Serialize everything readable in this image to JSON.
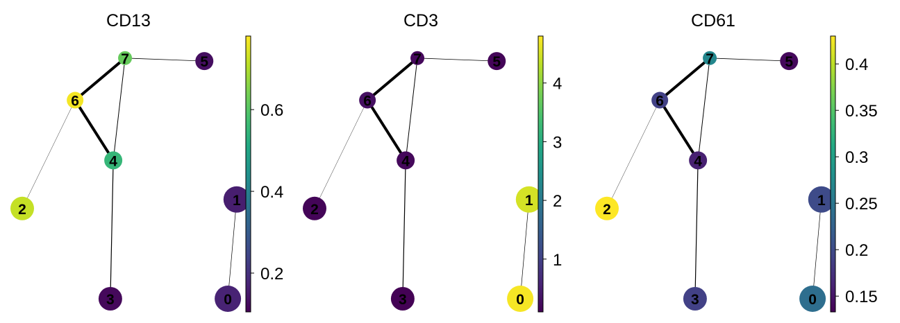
{
  "chart_data": [
    {
      "type": "scatter",
      "title": "CD13",
      "colorbar": {
        "min": 0.105,
        "max": 0.78,
        "ticks": [
          "0.2",
          "0.4",
          "0.6"
        ],
        "tick_values": [
          0.2,
          0.4,
          0.6
        ]
      },
      "nodes": [
        {
          "id": "0",
          "x": 7.0,
          "y": 0.4,
          "size": 19,
          "value": 0.17
        },
        {
          "id": "1",
          "x": 7.3,
          "y": 3.7,
          "size": 19,
          "value": 0.16
        },
        {
          "id": "2",
          "x": 0.0,
          "y": 3.4,
          "size": 17,
          "value": 0.72
        },
        {
          "id": "3",
          "x": 3.0,
          "y": 0.4,
          "size": 17,
          "value": 0.12
        },
        {
          "id": "4",
          "x": 3.1,
          "y": 5.0,
          "size": 13,
          "value": 0.55
        },
        {
          "id": "5",
          "x": 6.2,
          "y": 8.3,
          "size": 13,
          "value": 0.13
        },
        {
          "id": "6",
          "x": 1.8,
          "y": 7.0,
          "size": 12,
          "value": 0.77
        },
        {
          "id": "7",
          "x": 3.5,
          "y": 8.4,
          "size": 10,
          "value": 0.62
        }
      ]
    },
    {
      "type": "scatter",
      "title": "CD3",
      "colorbar": {
        "min": 0.1,
        "max": 4.8,
        "ticks": [
          "1",
          "2",
          "3",
          "4"
        ],
        "tick_values": [
          1,
          2,
          3,
          4
        ]
      },
      "nodes": [
        {
          "id": "0",
          "x": 7.0,
          "y": 0.4,
          "size": 19,
          "value": 4.75
        },
        {
          "id": "1",
          "x": 7.3,
          "y": 3.7,
          "size": 19,
          "value": 4.5
        },
        {
          "id": "2",
          "x": 0.0,
          "y": 3.4,
          "size": 17,
          "value": 0.15
        },
        {
          "id": "3",
          "x": 3.0,
          "y": 0.4,
          "size": 17,
          "value": 0.12
        },
        {
          "id": "4",
          "x": 3.1,
          "y": 5.0,
          "size": 13,
          "value": 0.2
        },
        {
          "id": "5",
          "x": 6.2,
          "y": 8.3,
          "size": 13,
          "value": 0.15
        },
        {
          "id": "6",
          "x": 1.8,
          "y": 7.0,
          "size": 12,
          "value": 0.3
        },
        {
          "id": "7",
          "x": 3.5,
          "y": 8.4,
          "size": 10,
          "value": 0.2
        }
      ]
    },
    {
      "type": "scatter",
      "title": "CD61",
      "colorbar": {
        "min": 0.133,
        "max": 0.43,
        "ticks": [
          "0.15",
          "0.2",
          "0.25",
          "0.3",
          "0.35",
          "0.4"
        ],
        "tick_values": [
          0.15,
          0.2,
          0.25,
          0.3,
          0.35,
          0.4
        ]
      },
      "nodes": [
        {
          "id": "0",
          "x": 7.0,
          "y": 0.4,
          "size": 19,
          "value": 0.24
        },
        {
          "id": "1",
          "x": 7.3,
          "y": 3.7,
          "size": 19,
          "value": 0.2
        },
        {
          "id": "2",
          "x": 0.0,
          "y": 3.4,
          "size": 17,
          "value": 0.43
        },
        {
          "id": "3",
          "x": 3.0,
          "y": 0.4,
          "size": 17,
          "value": 0.19
        },
        {
          "id": "4",
          "x": 3.1,
          "y": 5.0,
          "size": 13,
          "value": 0.16
        },
        {
          "id": "5",
          "x": 6.2,
          "y": 8.3,
          "size": 13,
          "value": 0.14
        },
        {
          "id": "6",
          "x": 1.8,
          "y": 7.0,
          "size": 12,
          "value": 0.19
        },
        {
          "id": "7",
          "x": 3.5,
          "y": 8.4,
          "size": 10,
          "value": 0.27
        }
      ]
    }
  ],
  "edges": [
    {
      "source": "6",
      "target": "7",
      "weight": 4
    },
    {
      "source": "6",
      "target": "4",
      "weight": 4
    },
    {
      "source": "7",
      "target": "4",
      "weight": 1
    },
    {
      "source": "7",
      "target": "5",
      "weight": 0.8
    },
    {
      "source": "4",
      "target": "3",
      "weight": 1.2
    },
    {
      "source": "6",
      "target": "2",
      "weight": 0.4
    },
    {
      "source": "1",
      "target": "0",
      "weight": 0.7
    }
  ],
  "colormap": {
    "name": "viridis",
    "stops": [
      "#440154",
      "#482475",
      "#414487",
      "#355f8d",
      "#2a788e",
      "#21918c",
      "#22a884",
      "#44bf70",
      "#7ad151",
      "#bddf26",
      "#fde725"
    ]
  }
}
